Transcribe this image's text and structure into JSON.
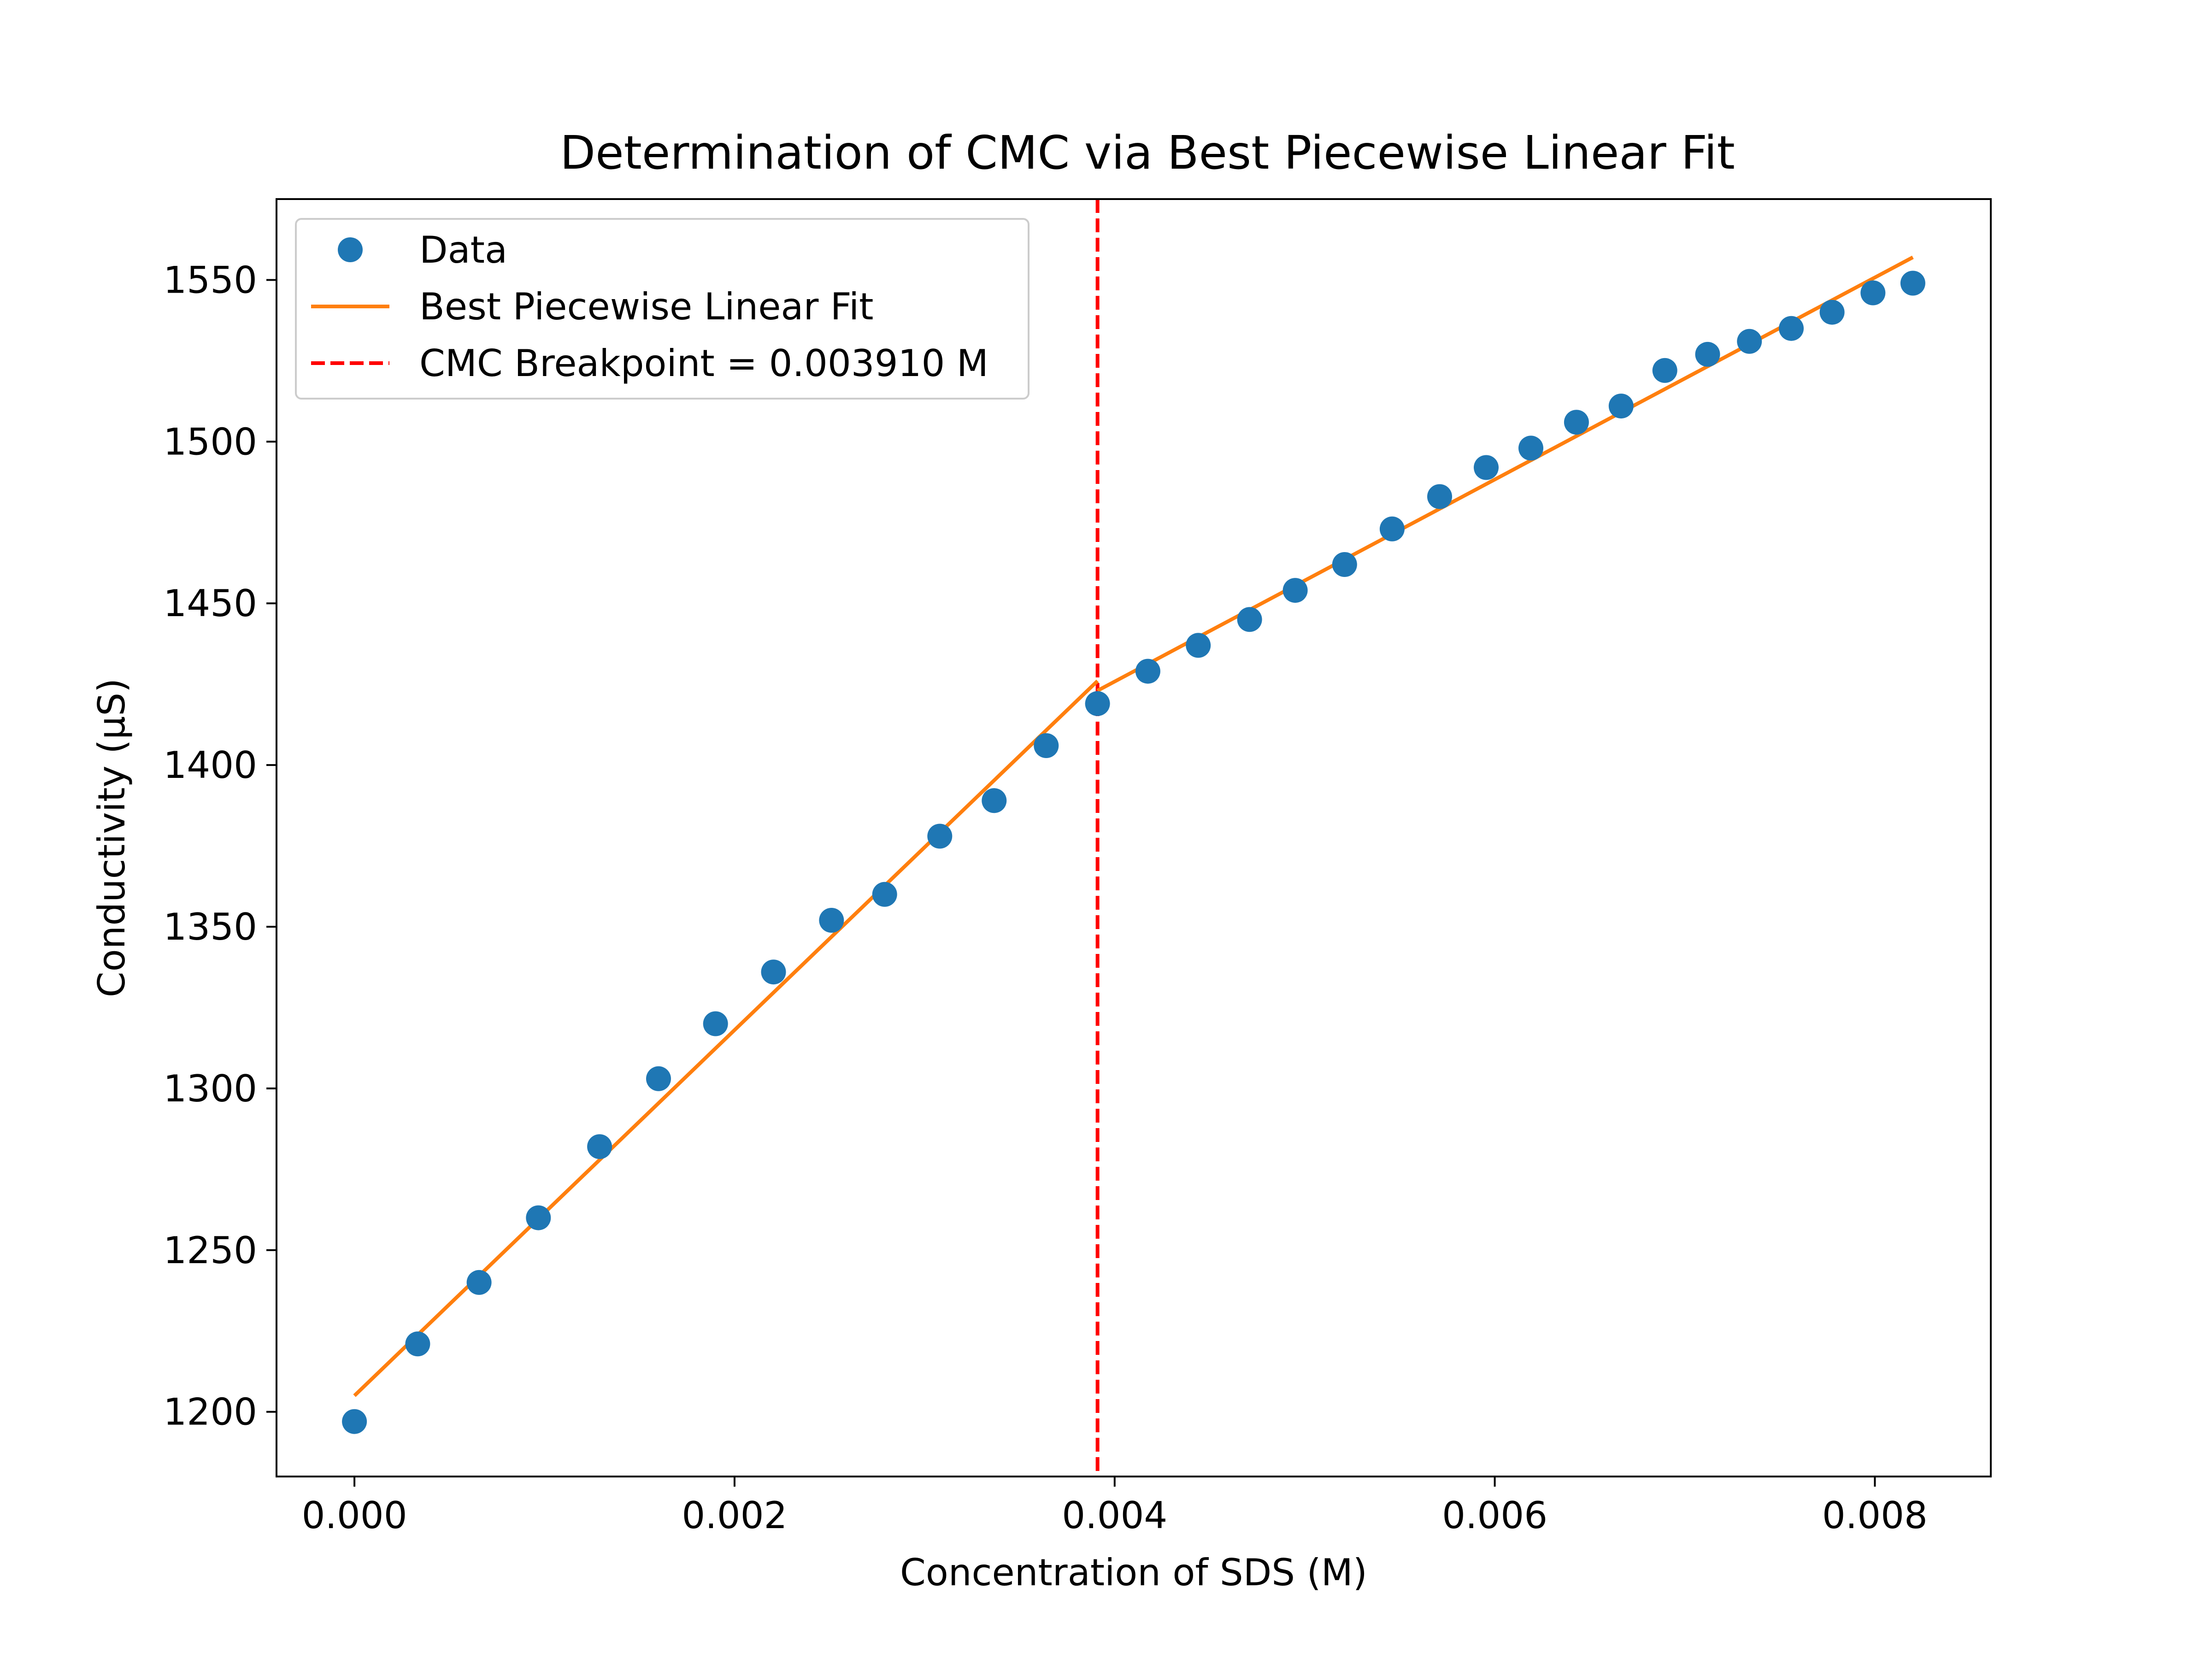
{
  "chart_data": {
    "type": "scatter",
    "title": "Determination of CMC via Best Piecewise Linear Fit",
    "xlabel": "Concentration of SDS (M)",
    "ylabel": "Conductivity (µS)",
    "xlim": [
      -0.00041,
      0.00861
    ],
    "ylim": [
      1180,
      1575
    ],
    "xticks": [
      0.0,
      0.002,
      0.004,
      0.006,
      0.008
    ],
    "xtick_labels": [
      "0.000",
      "0.002",
      "0.004",
      "0.006",
      "0.008"
    ],
    "yticks": [
      1200,
      1250,
      1300,
      1350,
      1400,
      1450,
      1500,
      1550
    ],
    "ytick_labels": [
      "1200",
      "1250",
      "1300",
      "1350",
      "1400",
      "1450",
      "1500",
      "1550"
    ],
    "grid": false,
    "legend_position": "upper-left",
    "series": [
      {
        "name": "Data",
        "kind": "scatter",
        "color": "#1f77b4",
        "x": [
          0.0,
          0.000333,
          0.000656,
          0.000968,
          0.00129,
          0.0016,
          0.0019,
          0.002205,
          0.00251,
          0.00279,
          0.00308,
          0.003366,
          0.00364,
          0.00391,
          0.004175,
          0.00444,
          0.00471,
          0.00495,
          0.00521,
          0.00546,
          0.00571,
          0.005955,
          0.00619,
          0.00643,
          0.006665,
          0.006895,
          0.00712,
          0.00734,
          0.00756,
          0.007775,
          0.00799,
          0.0082
        ],
        "y": [
          1197,
          1221,
          1240,
          1260,
          1282,
          1303,
          1320,
          1336,
          1352,
          1360,
          1378,
          1389,
          1406,
          1419,
          1429,
          1437,
          1445,
          1454,
          1462,
          1473,
          1483,
          1492,
          1498,
          1506,
          1511,
          1522,
          1527,
          1531,
          1535,
          1540,
          1546,
          1549
        ]
      },
      {
        "name": "Best Piecewise Linear Fit",
        "kind": "line",
        "color": "#ff7f0e",
        "segments": [
          [
            [
              0.0,
              1205
            ],
            [
              0.00391,
              1426
            ]
          ],
          [
            [
              0.00391,
              1423
            ],
            [
              0.0082,
              1557
            ]
          ]
        ]
      },
      {
        "name": "CMC Breakpoint = 0.003910 M",
        "kind": "vline",
        "color": "#ff0000",
        "x": 0.00391
      }
    ]
  }
}
